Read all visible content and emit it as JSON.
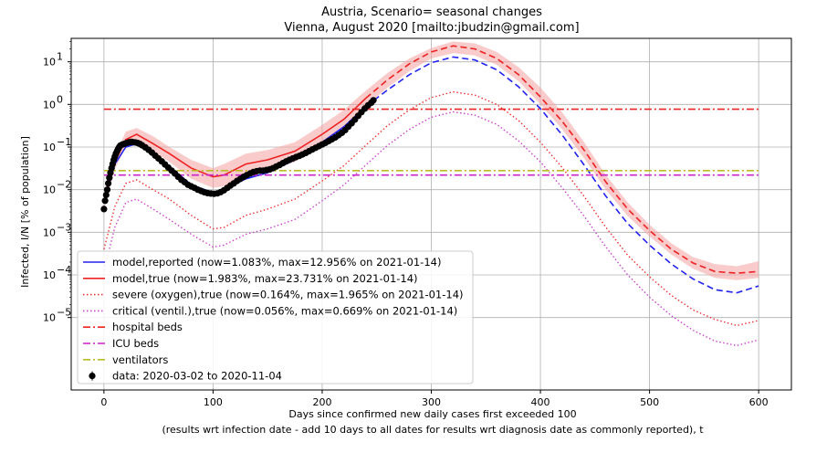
{
  "chart_data": {
    "type": "line",
    "title": "Austria, Scenario= seasonal changes",
    "subtitle": "Vienna, August 2020 [mailto:jbudzin@gmail.com]",
    "xlabel": "Days since confirmed new daily cases first exceeded 100",
    "xlabel2": "(results wrt infection date - add 10 days to all dates for results wrt diagnosis date as commonly reported), t",
    "ylabel": "Infected, I/N [% of population]",
    "xlim": [
      -30,
      630
    ],
    "ylim_log10": [
      -6.7,
      1.55
    ],
    "yscale": "log",
    "grid": true,
    "legend_position": "lower-left",
    "x_ticks": [
      0,
      100,
      200,
      300,
      400,
      500,
      600
    ],
    "y_ticks": [
      {
        "exp": 1,
        "label": "10"
      },
      {
        "exp": 0,
        "label": "10"
      },
      {
        "exp": -1,
        "label": "10"
      },
      {
        "exp": -2,
        "label": "10"
      },
      {
        "exp": -3,
        "label": "10"
      },
      {
        "exp": -4,
        "label": "10"
      },
      {
        "exp": -5,
        "label": "10"
      }
    ],
    "band_lower_true": [
      [
        0,
        0.0035
      ],
      [
        10,
        0.03
      ],
      [
        20,
        0.1
      ],
      [
        30,
        0.12
      ],
      [
        45,
        0.08
      ],
      [
        60,
        0.045
      ],
      [
        80,
        0.018
      ],
      [
        100,
        0.011
      ],
      [
        110,
        0.012
      ],
      [
        130,
        0.022
      ],
      [
        150,
        0.028
      ],
      [
        175,
        0.045
      ],
      [
        200,
        0.12
      ],
      [
        220,
        0.28
      ],
      [
        240,
        0.9
      ],
      [
        260,
        2.5
      ],
      [
        280,
        6
      ],
      [
        300,
        12
      ],
      [
        320,
        16
      ],
      [
        340,
        14
      ],
      [
        360,
        8.5
      ],
      [
        380,
        3.5
      ],
      [
        400,
        1
      ],
      [
        420,
        0.26
      ],
      [
        440,
        0.055
      ],
      [
        460,
        0.01
      ],
      [
        480,
        0.0024
      ],
      [
        500,
        0.0008
      ],
      [
        520,
        0.0003
      ],
      [
        540,
        0.00014
      ],
      [
        560,
        8.5e-05
      ],
      [
        580,
        7.5e-05
      ],
      [
        600,
        8.5e-05
      ]
    ],
    "band_upper_true": [
      [
        0,
        0.007
      ],
      [
        10,
        0.06
      ],
      [
        20,
        0.23
      ],
      [
        30,
        0.28
      ],
      [
        45,
        0.18
      ],
      [
        60,
        0.1
      ],
      [
        80,
        0.05
      ],
      [
        100,
        0.032
      ],
      [
        110,
        0.04
      ],
      [
        130,
        0.07
      ],
      [
        150,
        0.085
      ],
      [
        175,
        0.13
      ],
      [
        200,
        0.33
      ],
      [
        220,
        0.75
      ],
      [
        240,
        2.1
      ],
      [
        260,
        5.5
      ],
      [
        280,
        12
      ],
      [
        300,
        21
      ],
      [
        320,
        30
      ],
      [
        340,
        27
      ],
      [
        360,
        17
      ],
      [
        380,
        7.5
      ],
      [
        400,
        2.5
      ],
      [
        420,
        0.65
      ],
      [
        440,
        0.13
      ],
      [
        460,
        0.022
      ],
      [
        480,
        0.005
      ],
      [
        500,
        0.0015
      ],
      [
        520,
        0.00055
      ],
      [
        540,
        0.00026
      ],
      [
        560,
        0.00018
      ],
      [
        580,
        0.00016
      ],
      [
        600,
        0.00021
      ]
    ],
    "series": [
      {
        "name": "model,reported (now=1.083%, max=12.956% on 2021-01-14)",
        "color": "#2222ee",
        "dash": "dashed-after-now",
        "points": [
          [
            0,
            0.005
          ],
          [
            10,
            0.04
          ],
          [
            20,
            0.1
          ],
          [
            30,
            0.12
          ],
          [
            45,
            0.07
          ],
          [
            60,
            0.035
          ],
          [
            80,
            0.013
          ],
          [
            100,
            0.0085
          ],
          [
            110,
            0.01
          ],
          [
            130,
            0.018
          ],
          [
            150,
            0.025
          ],
          [
            175,
            0.05
          ],
          [
            200,
            0.13
          ],
          [
            220,
            0.3
          ],
          [
            240,
            0.9
          ],
          [
            260,
            2.2
          ],
          [
            280,
            5
          ],
          [
            300,
            9.5
          ],
          [
            320,
            12.956
          ],
          [
            340,
            11
          ],
          [
            360,
            6.5
          ],
          [
            380,
            2.6
          ],
          [
            400,
            0.8
          ],
          [
            420,
            0.19
          ],
          [
            440,
            0.038
          ],
          [
            460,
            0.007
          ],
          [
            480,
            0.0016
          ],
          [
            500,
            0.0005
          ],
          [
            520,
            0.00018
          ],
          [
            540,
            8e-05
          ],
          [
            560,
            4.5e-05
          ],
          [
            580,
            3.8e-05
          ],
          [
            600,
            5.5e-05
          ]
        ]
      },
      {
        "name": "model,true (now=1.983%, max=23.731% on 2021-01-14)",
        "color": "#ee2222",
        "dash": "dashed-after-now",
        "points": [
          [
            0,
            0.005
          ],
          [
            10,
            0.045
          ],
          [
            20,
            0.15
          ],
          [
            30,
            0.2
          ],
          [
            45,
            0.12
          ],
          [
            60,
            0.07
          ],
          [
            80,
            0.032
          ],
          [
            100,
            0.02
          ],
          [
            110,
            0.022
          ],
          [
            130,
            0.04
          ],
          [
            150,
            0.05
          ],
          [
            175,
            0.08
          ],
          [
            200,
            0.2
          ],
          [
            220,
            0.45
          ],
          [
            240,
            1.4
          ],
          [
            260,
            3.8
          ],
          [
            280,
            9
          ],
          [
            300,
            17
          ],
          [
            320,
            23.731
          ],
          [
            340,
            20
          ],
          [
            360,
            12
          ],
          [
            380,
            5
          ],
          [
            400,
            1.5
          ],
          [
            420,
            0.4
          ],
          [
            440,
            0.085
          ],
          [
            460,
            0.015
          ],
          [
            480,
            0.0035
          ],
          [
            500,
            0.0011
          ],
          [
            520,
            0.0004
          ],
          [
            540,
            0.00019
          ],
          [
            560,
            0.00012
          ],
          [
            580,
            0.00011
          ],
          [
            600,
            0.00012
          ]
        ]
      },
      {
        "name": "severe (oxygen),true (now=0.164%, max=1.965% on 2021-01-14)",
        "color": "#ee3333",
        "dash": "dotted",
        "points": [
          [
            0,
            0.0004
          ],
          [
            10,
            0.004
          ],
          [
            20,
            0.014
          ],
          [
            30,
            0.017
          ],
          [
            45,
            0.01
          ],
          [
            60,
            0.006
          ],
          [
            80,
            0.0025
          ],
          [
            100,
            0.0012
          ],
          [
            110,
            0.0013
          ],
          [
            130,
            0.0025
          ],
          [
            150,
            0.0035
          ],
          [
            175,
            0.006
          ],
          [
            200,
            0.016
          ],
          [
            220,
            0.037
          ],
          [
            240,
            0.11
          ],
          [
            260,
            0.32
          ],
          [
            280,
            0.75
          ],
          [
            300,
            1.45
          ],
          [
            320,
            1.965
          ],
          [
            340,
            1.65
          ],
          [
            360,
            1
          ],
          [
            380,
            0.42
          ],
          [
            400,
            0.13
          ],
          [
            420,
            0.033
          ],
          [
            440,
            0.007
          ],
          [
            460,
            0.0013
          ],
          [
            480,
            0.00029
          ],
          [
            500,
            9e-05
          ],
          [
            520,
            3.3e-05
          ],
          [
            540,
            1.5e-05
          ],
          [
            560,
            9e-06
          ],
          [
            580,
            6.5e-06
          ],
          [
            600,
            8.5e-06
          ]
        ]
      },
      {
        "name": "critical (ventil.),true (now=0.056%, max=0.669% on 2021-01-14)",
        "color": "#cc44cc",
        "dash": "dotted",
        "points": [
          [
            0,
            0.00013
          ],
          [
            10,
            0.0013
          ],
          [
            20,
            0.005
          ],
          [
            30,
            0.006
          ],
          [
            45,
            0.0035
          ],
          [
            60,
            0.002
          ],
          [
            80,
            0.0009
          ],
          [
            100,
            0.00045
          ],
          [
            110,
            0.0005
          ],
          [
            130,
            0.0009
          ],
          [
            150,
            0.0012
          ],
          [
            175,
            0.002
          ],
          [
            200,
            0.0055
          ],
          [
            220,
            0.013
          ],
          [
            240,
            0.038
          ],
          [
            260,
            0.11
          ],
          [
            280,
            0.26
          ],
          [
            300,
            0.5
          ],
          [
            320,
            0.669
          ],
          [
            340,
            0.56
          ],
          [
            360,
            0.34
          ],
          [
            380,
            0.14
          ],
          [
            400,
            0.045
          ],
          [
            420,
            0.011
          ],
          [
            440,
            0.0024
          ],
          [
            460,
            0.00045
          ],
          [
            480,
            0.0001
          ],
          [
            500,
            3e-05
          ],
          [
            520,
            1.1e-05
          ],
          [
            540,
            5e-06
          ],
          [
            560,
            2.8e-06
          ],
          [
            580,
            2.2e-06
          ],
          [
            600,
            3e-06
          ]
        ]
      },
      {
        "name": "hospital beds",
        "color": "#ee2222",
        "dash": "dashdot",
        "points": [
          [
            0,
            0.77
          ],
          [
            600,
            0.77
          ]
        ]
      },
      {
        "name": "ICU beds",
        "color": "#cc22cc",
        "dash": "dashdot",
        "points": [
          [
            0,
            0.022
          ],
          [
            600,
            0.022
          ]
        ]
      },
      {
        "name": "ventilators",
        "color": "#bbbb22",
        "dash": "dashdot",
        "points": [
          [
            0,
            0.028
          ],
          [
            600,
            0.028
          ]
        ]
      }
    ],
    "data_series": {
      "name": "data: 2020-03-02 to 2020-11-04",
      "points": [
        [
          0,
          0.0035
        ],
        [
          1,
          0.0055
        ],
        [
          2,
          0.0075
        ],
        [
          3,
          0.01
        ],
        [
          4,
          0.014
        ],
        [
          5,
          0.019
        ],
        [
          6,
          0.025
        ],
        [
          7,
          0.032
        ],
        [
          8,
          0.04
        ],
        [
          9,
          0.05
        ],
        [
          10,
          0.06
        ],
        [
          11,
          0.07
        ],
        [
          12,
          0.08
        ],
        [
          13,
          0.09
        ],
        [
          14,
          0.1
        ],
        [
          15,
          0.108
        ],
        [
          17,
          0.115
        ],
        [
          19,
          0.12
        ],
        [
          21,
          0.125
        ],
        [
          23,
          0.13
        ],
        [
          25,
          0.132
        ],
        [
          27,
          0.13
        ],
        [
          29,
          0.128
        ],
        [
          31,
          0.124
        ],
        [
          33,
          0.118
        ],
        [
          35,
          0.11
        ],
        [
          38,
          0.098
        ],
        [
          41,
          0.086
        ],
        [
          44,
          0.074
        ],
        [
          47,
          0.063
        ],
        [
          50,
          0.054
        ],
        [
          53,
          0.046
        ],
        [
          56,
          0.039
        ],
        [
          59,
          0.033
        ],
        [
          62,
          0.028
        ],
        [
          65,
          0.024
        ],
        [
          68,
          0.02
        ],
        [
          71,
          0.017
        ],
        [
          74,
          0.015
        ],
        [
          77,
          0.013
        ],
        [
          80,
          0.012
        ],
        [
          83,
          0.011
        ],
        [
          86,
          0.01
        ],
        [
          89,
          0.0093
        ],
        [
          92,
          0.0087
        ],
        [
          95,
          0.0083
        ],
        [
          98,
          0.0081
        ],
        [
          101,
          0.008
        ],
        [
          104,
          0.0082
        ],
        [
          107,
          0.0088
        ],
        [
          110,
          0.0097
        ],
        [
          113,
          0.011
        ],
        [
          116,
          0.0125
        ],
        [
          119,
          0.014
        ],
        [
          122,
          0.016
        ],
        [
          125,
          0.018
        ],
        [
          128,
          0.02
        ],
        [
          131,
          0.022
        ],
        [
          134,
          0.024
        ],
        [
          137,
          0.026
        ],
        [
          140,
          0.027
        ],
        [
          143,
          0.028
        ],
        [
          146,
          0.028
        ],
        [
          149,
          0.029
        ],
        [
          152,
          0.03
        ],
        [
          155,
          0.032
        ],
        [
          158,
          0.035
        ],
        [
          161,
          0.038
        ],
        [
          164,
          0.042
        ],
        [
          167,
          0.046
        ],
        [
          170,
          0.05
        ],
        [
          173,
          0.054
        ],
        [
          176,
          0.058
        ],
        [
          179,
          0.062
        ],
        [
          182,
          0.067
        ],
        [
          185,
          0.073
        ],
        [
          188,
          0.08
        ],
        [
          191,
          0.088
        ],
        [
          194,
          0.096
        ],
        [
          197,
          0.105
        ],
        [
          200,
          0.115
        ],
        [
          203,
          0.125
        ],
        [
          206,
          0.138
        ],
        [
          209,
          0.152
        ],
        [
          212,
          0.168
        ],
        [
          215,
          0.19
        ],
        [
          218,
          0.215
        ],
        [
          221,
          0.25
        ],
        [
          224,
          0.3
        ],
        [
          227,
          0.36
        ],
        [
          230,
          0.44
        ],
        [
          233,
          0.54
        ],
        [
          236,
          0.66
        ],
        [
          239,
          0.8
        ],
        [
          242,
          0.95
        ],
        [
          245,
          1.1
        ],
        [
          247,
          1.25
        ]
      ]
    }
  }
}
